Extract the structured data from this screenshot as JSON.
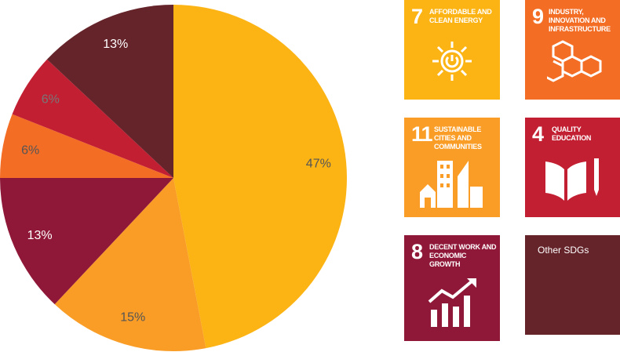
{
  "chart_data": {
    "type": "pie",
    "categories": [
      "AFFORDABLE AND CLEAN ENERGY",
      "SUSTAINABLE CITIES AND COMMUNITIES",
      "DECENT WORK AND ECONOMIC GROWTH",
      "INDUSTRY, INNOVATION AND INFRASTRUCTURE",
      "QUALITY EDUCATION",
      "Other SDGs"
    ],
    "sdg_numbers": [
      "7",
      "11",
      "8",
      "9",
      "4",
      null
    ],
    "values": [
      47,
      15,
      13,
      6,
      6,
      13
    ],
    "value_labels": [
      "47%",
      "15%",
      "13%",
      "6%",
      "6%",
      "13%"
    ],
    "colors": [
      "#fcb415",
      "#f99d26",
      "#8f1838",
      "#f36d25",
      "#c31f33",
      "#65232a"
    ],
    "label_colors": [
      "#555555",
      "#555555",
      "#ffffff",
      "#555555",
      "#777777",
      "#ffffff"
    ]
  }
}
